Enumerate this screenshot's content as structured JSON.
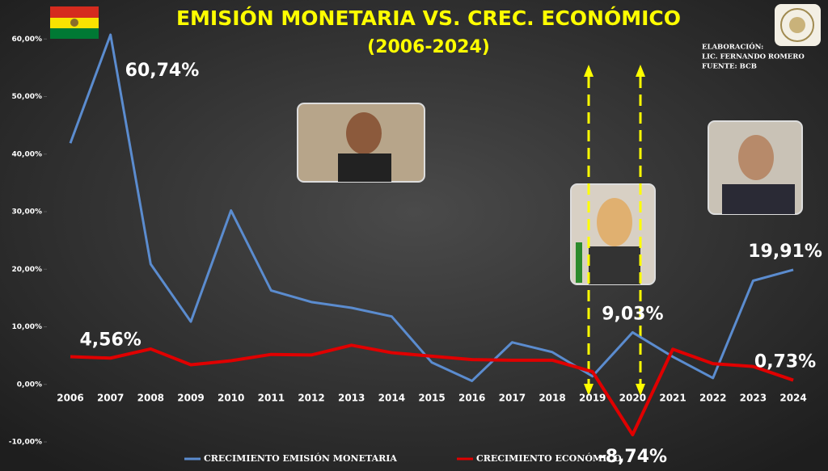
{
  "chart_data": {
    "type": "line",
    "title": "EMISIÓN  MONETARIA VS. CREC. ECONÓMICO",
    "subtitle": "(2006-2024)",
    "annotations": [
      "ELABORACIÓN:",
      "LIC. FERNANDO ROMERO",
      "FUENTE: BCB"
    ],
    "categories": [
      "2006",
      "2007",
      "2008",
      "2009",
      "2010",
      "2011",
      "2012",
      "2013",
      "2014",
      "2015",
      "2016",
      "2017",
      "2018",
      "2019",
      "2020",
      "2021",
      "2022",
      "2023",
      "2024"
    ],
    "series": [
      {
        "name": "CRECIMIENTO EMISIÓN MONETARIA",
        "color": "#5b8ccf",
        "values": [
          41.9,
          60.74,
          20.9,
          10.9,
          30.2,
          16.3,
          14.3,
          13.3,
          11.8,
          3.8,
          0.6,
          7.3,
          5.6,
          1.4,
          9.03,
          4.8,
          1.1,
          18.0,
          19.91
        ],
        "value_labels": [
          null,
          "60,74%",
          null,
          null,
          null,
          null,
          null,
          null,
          null,
          null,
          null,
          null,
          null,
          null,
          "9,03%",
          null,
          null,
          null,
          "19,91%"
        ]
      },
      {
        "name": "CRECIMIENTO ECONÓMICO",
        "color": "#e00000",
        "values": [
          4.8,
          4.56,
          6.15,
          3.4,
          4.1,
          5.2,
          5.1,
          6.8,
          5.5,
          4.9,
          4.3,
          4.2,
          4.2,
          2.2,
          -8.74,
          6.1,
          3.6,
          3.1,
          0.73
        ],
        "value_labels": [
          null,
          "4,56%",
          null,
          null,
          null,
          null,
          null,
          null,
          null,
          null,
          null,
          null,
          null,
          null,
          "-8,74%",
          null,
          null,
          null,
          "0,73%"
        ]
      }
    ],
    "ylim": [
      -10,
      62
    ],
    "yticks": [
      {
        "value": -10,
        "label": "-10,00%"
      },
      {
        "value": 0,
        "label": "0,00%"
      },
      {
        "value": 10,
        "label": "10,00%"
      },
      {
        "value": 20,
        "label": "20,00%"
      },
      {
        "value": 30,
        "label": "30,00%"
      },
      {
        "value": 40,
        "label": "40,00%"
      },
      {
        "value": 50,
        "label": "50,00%"
      },
      {
        "value": 60,
        "label": "60,00%"
      }
    ],
    "grid": false,
    "legend": "bottom"
  }
}
